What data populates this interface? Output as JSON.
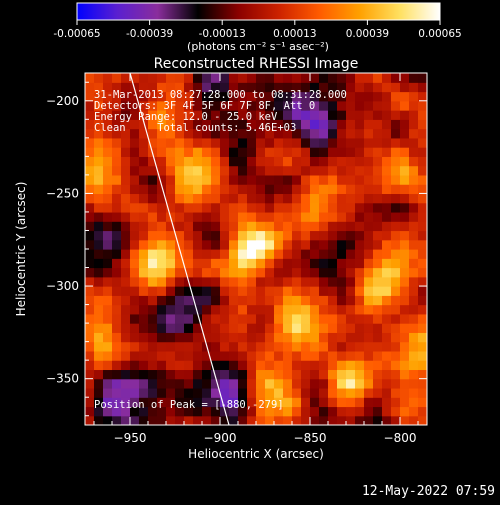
{
  "colorbar": {
    "ticks": [
      "-0.00065",
      "-0.00039",
      "-0.00013",
      "0.00013",
      "0.00039",
      "0.00065"
    ],
    "tick_values": [
      -0.00065,
      -0.00039,
      -0.00013,
      0.00013,
      0.00039,
      0.00065
    ],
    "units": "(photons cm⁻² s⁻¹ asec⁻²)",
    "colors": [
      "#0000ff",
      "#5a1fd0",
      "#8a2d9c",
      "#000000",
      "#8b0000",
      "#cc2200",
      "#ff5a00",
      "#ffa000",
      "#ffe060",
      "#ffffff"
    ]
  },
  "annotations": {
    "time": "31-Mar-2013 08:27:28.000 to 08:31:28.000",
    "detectors": "Detectors: 3F 4F 5F 6F 7F 8F, Att 0",
    "energy": "Energy Range: 12.0 - 25.0 keV",
    "clean": "Clean     Total counts: 5.46E+03",
    "peak": "Position of Peak = [-880,-279]"
  },
  "footer": {
    "date": "12-May-2022 07:59"
  },
  "chart_data": {
    "type": "heatmap",
    "title": "Reconstructed RHESSI Image",
    "xlabel": "Heliocentric X (arcsec)",
    "ylabel": "Heliocentric Y (arcsec)",
    "xlim": [
      -975,
      -785
    ],
    "ylim": [
      -375,
      -185
    ],
    "xticks": [
      -950,
      -900,
      -850,
      -800
    ],
    "yticks": [
      -200,
      -250,
      -300,
      -350
    ],
    "xtick_labels": [
      "−950",
      "−900",
      "−850",
      "−800"
    ],
    "ytick_labels": [
      "−200",
      "−250",
      "−300",
      "−350"
    ],
    "peak": {
      "x": -880,
      "y": -279
    },
    "limb_line": [
      [
        -950,
        -185
      ],
      [
        -895,
        -375
      ]
    ],
    "value_range": [
      -0.00065,
      0.00065
    ],
    "sources": [
      {
        "x": -880,
        "y": -279,
        "value": 0.00065
      },
      {
        "x": -938,
        "y": -287,
        "value": 0.00045
      },
      {
        "x": -912,
        "y": -242,
        "value": 0.0004
      },
      {
        "x": -963,
        "y": -232,
        "value": 0.00038
      },
      {
        "x": -800,
        "y": -238,
        "value": 0.00042
      },
      {
        "x": -812,
        "y": -300,
        "value": 0.00044
      },
      {
        "x": -795,
        "y": -338,
        "value": 0.0005
      },
      {
        "x": -858,
        "y": -320,
        "value": 0.00036
      },
      {
        "x": -930,
        "y": -212,
        "value": 0.0003
      },
      {
        "x": -850,
        "y": -262,
        "value": 0.00032
      },
      {
        "x": -828,
        "y": -350,
        "value": 0.00035
      },
      {
        "x": -968,
        "y": -325,
        "value": 0.0003
      },
      {
        "x": -875,
        "y": -360,
        "value": 0.00028
      },
      {
        "x": -955,
        "y": -360,
        "value": -0.00045
      },
      {
        "x": -900,
        "y": -355,
        "value": -0.0005
      },
      {
        "x": -925,
        "y": -320,
        "value": -0.00035
      },
      {
        "x": -845,
        "y": -205,
        "value": -0.0004
      },
      {
        "x": -905,
        "y": -195,
        "value": -0.00035
      },
      {
        "x": -960,
        "y": -270,
        "value": -0.0003
      },
      {
        "x": -830,
        "y": -290,
        "value": -0.00028
      }
    ]
  }
}
